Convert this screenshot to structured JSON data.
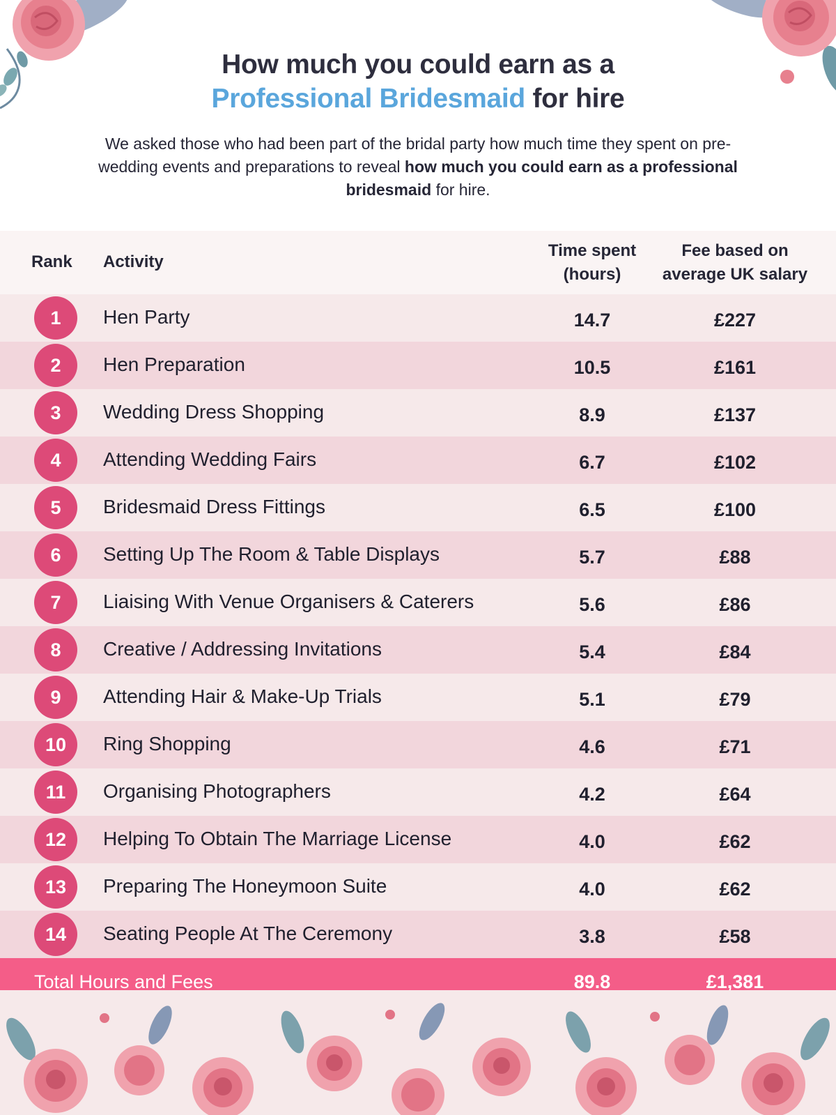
{
  "header": {
    "title_line1": "How much you could earn as a",
    "title_accent": "Professional Bridesmaid",
    "title_rest": "for hire",
    "intro_plain": "We asked those who had been part of the bridal party how much time they spent on pre-wedding events and preparations to reveal",
    "intro_bold": "how much you could earn as a professional bridesmaid",
    "intro_end": "for hire."
  },
  "table": {
    "headers": {
      "rank": "Rank",
      "activity": "Activity",
      "time_line1": "Time spent",
      "time_line2": "(hours)",
      "fee_line1": "Fee based on",
      "fee_line2": "average UK salary"
    },
    "rows": [
      {
        "rank": "1",
        "activity": "Hen Party",
        "hours": "14.7",
        "fee": "£227"
      },
      {
        "rank": "2",
        "activity": "Hen Preparation",
        "hours": "10.5",
        "fee": "£161"
      },
      {
        "rank": "3",
        "activity": "Wedding Dress Shopping",
        "hours": "8.9",
        "fee": "£137"
      },
      {
        "rank": "4",
        "activity": "Attending Wedding Fairs",
        "hours": "6.7",
        "fee": "£102"
      },
      {
        "rank": "5",
        "activity": "Bridesmaid Dress Fittings",
        "hours": "6.5",
        "fee": "£100"
      },
      {
        "rank": "6",
        "activity": "Setting Up The Room & Table Displays",
        "hours": "5.7",
        "fee": "£88"
      },
      {
        "rank": "7",
        "activity": "Liaising With Venue Organisers & Caterers",
        "hours": "5.6",
        "fee": "£86"
      },
      {
        "rank": "8",
        "activity": "Creative / Addressing Invitations",
        "hours": "5.4",
        "fee": "£84"
      },
      {
        "rank": "9",
        "activity": "Attending Hair & Make-Up Trials",
        "hours": "5.1",
        "fee": "£79"
      },
      {
        "rank": "10",
        "activity": "Ring Shopping",
        "hours": "4.6",
        "fee": "£71"
      },
      {
        "rank": "11",
        "activity": "Organising Photographers",
        "hours": "4.2",
        "fee": "£64"
      },
      {
        "rank": "12",
        "activity": "Helping To Obtain The Marriage License",
        "hours": "4.0",
        "fee": "£62"
      },
      {
        "rank": "13",
        "activity": "Preparing The Honeymoon Suite",
        "hours": "4.0",
        "fee": "£62"
      },
      {
        "rank": "14",
        "activity": "Seating People At The Ceremony",
        "hours": "3.8",
        "fee": "£58"
      }
    ],
    "total": {
      "label": "Total Hours and Fees",
      "hours": "89.8",
      "fee": "£1,381"
    }
  },
  "colors": {
    "title_accent": "#5aa6dc",
    "badge": "#dd4a78",
    "row_light": "#f6e9ea",
    "row_dark": "#f2d6dc",
    "total_bar": "#f45d88"
  },
  "decorations": [
    "rose-cluster-top-left",
    "rose-cluster-top-right",
    "rose-border-bottom"
  ]
}
